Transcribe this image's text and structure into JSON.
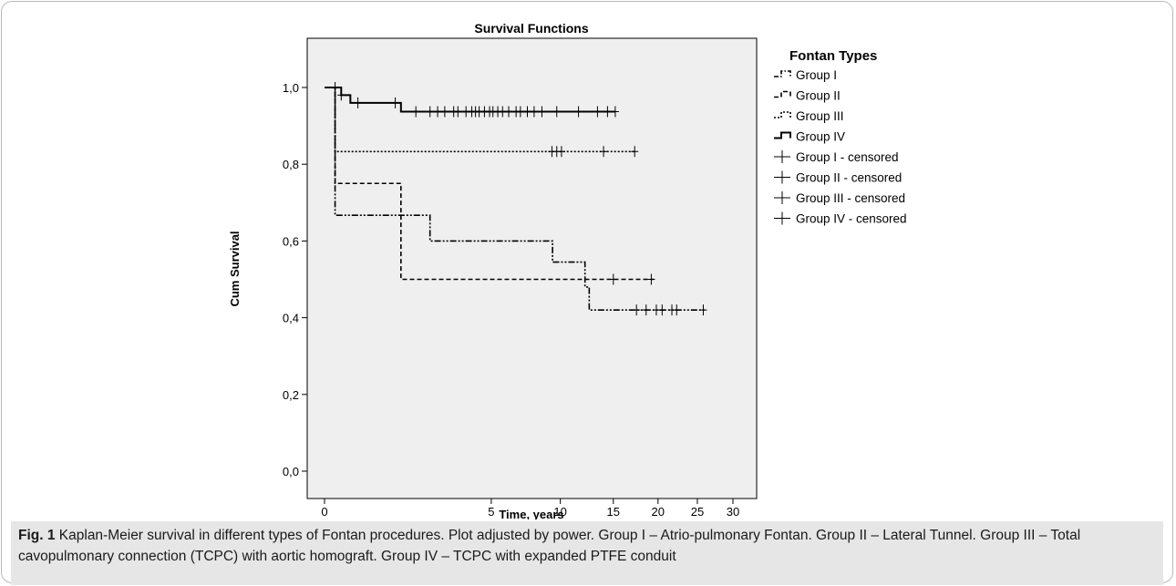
{
  "chart_data": {
    "type": "line",
    "title": "Survival Functions",
    "xlabel": "Time, years",
    "ylabel": "Cum Survival",
    "x_ticks": [
      "0",
      "5",
      "10",
      "15",
      "20",
      "25",
      "30"
    ],
    "y_ticks": [
      "0,0",
      "0,2",
      "0,4",
      "0,6",
      "0,8",
      "1,0"
    ],
    "xlim": [
      0,
      30
    ],
    "ylim": [
      0,
      1.0
    ],
    "x_scale": "power",
    "grid": false,
    "legend_title": "Fontan Types",
    "legend_position": "right",
    "series": [
      {
        "name": "Group I",
        "style": "dash-dot-dot",
        "steps": [
          [
            0,
            1.0
          ],
          [
            0.02,
            0.667
          ],
          [
            1.5,
            0.667
          ],
          [
            2.0,
            0.6
          ],
          [
            9.3,
            0.6
          ],
          [
            9.35,
            0.545
          ],
          [
            12.0,
            0.545
          ],
          [
            12.2,
            0.48
          ],
          [
            12.6,
            0.42
          ],
          [
            26.0,
            0.42
          ]
        ],
        "censored": [
          [
            17.5,
            0.42
          ],
          [
            18.6,
            0.42
          ],
          [
            19.8,
            0.42
          ],
          [
            20.5,
            0.42
          ],
          [
            21.7,
            0.42
          ],
          [
            22.3,
            0.42
          ],
          [
            25.8,
            0.42
          ]
        ]
      },
      {
        "name": "Group II",
        "style": "dashed",
        "steps": [
          [
            0,
            1.0
          ],
          [
            0.02,
            0.75
          ],
          [
            1.0,
            0.75
          ],
          [
            1.05,
            0.5
          ],
          [
            19.5,
            0.5
          ]
        ],
        "censored": [
          [
            15.0,
            0.5
          ],
          [
            19.2,
            0.5
          ]
        ]
      },
      {
        "name": "Group III",
        "style": "dotted",
        "steps": [
          [
            0,
            1.0
          ],
          [
            0.02,
            0.833
          ],
          [
            17.3,
            0.833
          ]
        ],
        "censored": [
          [
            9.3,
            0.833
          ],
          [
            9.7,
            0.833
          ],
          [
            10.1,
            0.833
          ],
          [
            14.0,
            0.833
          ],
          [
            17.3,
            0.833
          ]
        ]
      },
      {
        "name": "Group IV",
        "style": "solid",
        "steps": [
          [
            0,
            1.0
          ],
          [
            0.05,
            0.98
          ],
          [
            0.12,
            0.96
          ],
          [
            1.0,
            0.96
          ],
          [
            1.05,
            0.937
          ],
          [
            15.2,
            0.937
          ]
        ],
        "censored": [
          [
            0.02,
            1.0
          ],
          [
            0.05,
            0.98
          ],
          [
            0.2,
            0.96
          ],
          [
            0.9,
            0.96
          ],
          [
            1.5,
            0.937
          ],
          [
            2.0,
            0.937
          ],
          [
            2.3,
            0.937
          ],
          [
            2.6,
            0.937
          ],
          [
            3.0,
            0.937
          ],
          [
            3.2,
            0.937
          ],
          [
            3.6,
            0.937
          ],
          [
            3.9,
            0.937
          ],
          [
            4.1,
            0.937
          ],
          [
            4.3,
            0.937
          ],
          [
            4.6,
            0.937
          ],
          [
            4.9,
            0.937
          ],
          [
            5.1,
            0.937
          ],
          [
            5.4,
            0.937
          ],
          [
            5.7,
            0.937
          ],
          [
            6.1,
            0.937
          ],
          [
            6.6,
            0.937
          ],
          [
            6.9,
            0.937
          ],
          [
            7.4,
            0.937
          ],
          [
            7.9,
            0.937
          ],
          [
            8.5,
            0.937
          ],
          [
            9.7,
            0.937
          ],
          [
            11.6,
            0.937
          ],
          [
            13.4,
            0.937
          ],
          [
            14.4,
            0.937
          ],
          [
            15.2,
            0.937
          ]
        ]
      }
    ],
    "legend_entries": [
      "Group I",
      "Group II",
      "Group III",
      "Group IV",
      "Group I - censored",
      "Group II - censored",
      "Group III - censored",
      "Group IV - censored"
    ]
  },
  "caption": {
    "label": "Fig. 1",
    "text": " Kaplan-Meier survival in different types of Fontan procedures. Plot adjusted by power. Group I – Atrio-pulmonary Fontan. Group II – Lateral Tunnel. Group III – Total cavopulmonary connection (TCPC) with aortic homograft. Group IV – TCPC with expanded PTFE conduit"
  },
  "colors": {
    "plot_background": "#efefef",
    "line": "#000000",
    "caption_background": "#e6e6e6"
  }
}
